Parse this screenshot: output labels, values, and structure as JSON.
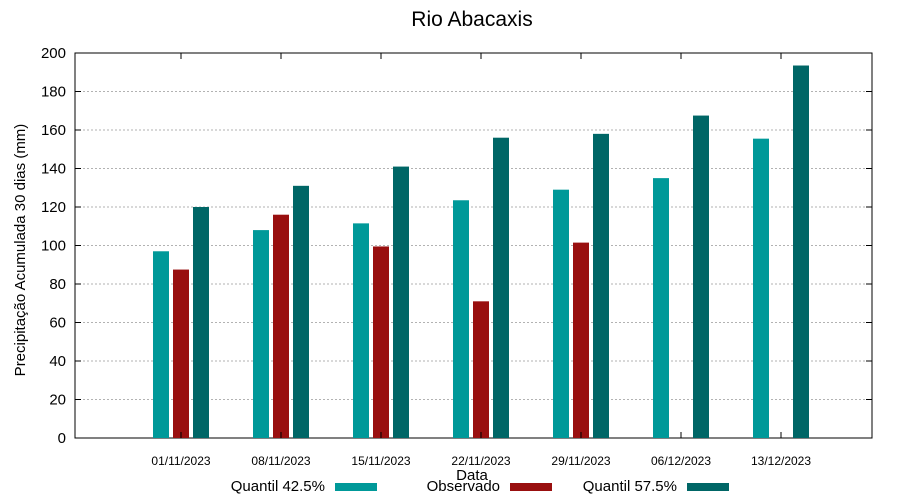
{
  "chart_data": {
    "type": "bar",
    "title": "Rio Abacaxis",
    "xlabel": "Data",
    "ylabel": "Precipitação Acumulada 30 dias (mm)",
    "ylim": [
      0,
      200
    ],
    "yticks": [
      0,
      20,
      40,
      60,
      80,
      100,
      120,
      140,
      160,
      180,
      200
    ],
    "grid": true,
    "legend_position": "bottom",
    "categories": [
      "01/11/2023",
      "08/11/2023",
      "15/11/2023",
      "22/11/2023",
      "29/11/2023",
      "06/12/2023",
      "13/12/2023"
    ],
    "series": [
      {
        "name": "Quantil 42.5%",
        "color": "#009999",
        "values": [
          97,
          108,
          111.5,
          123.5,
          129,
          135,
          155.5
        ]
      },
      {
        "name": "Observado",
        "color": "#990f0f",
        "values": [
          87.5,
          116,
          99.5,
          71,
          101.5,
          null,
          null
        ]
      },
      {
        "name": "Quantil 57.5%",
        "color": "#006666",
        "values": [
          120,
          131,
          141,
          156,
          158,
          167.5,
          193.5
        ]
      }
    ]
  }
}
